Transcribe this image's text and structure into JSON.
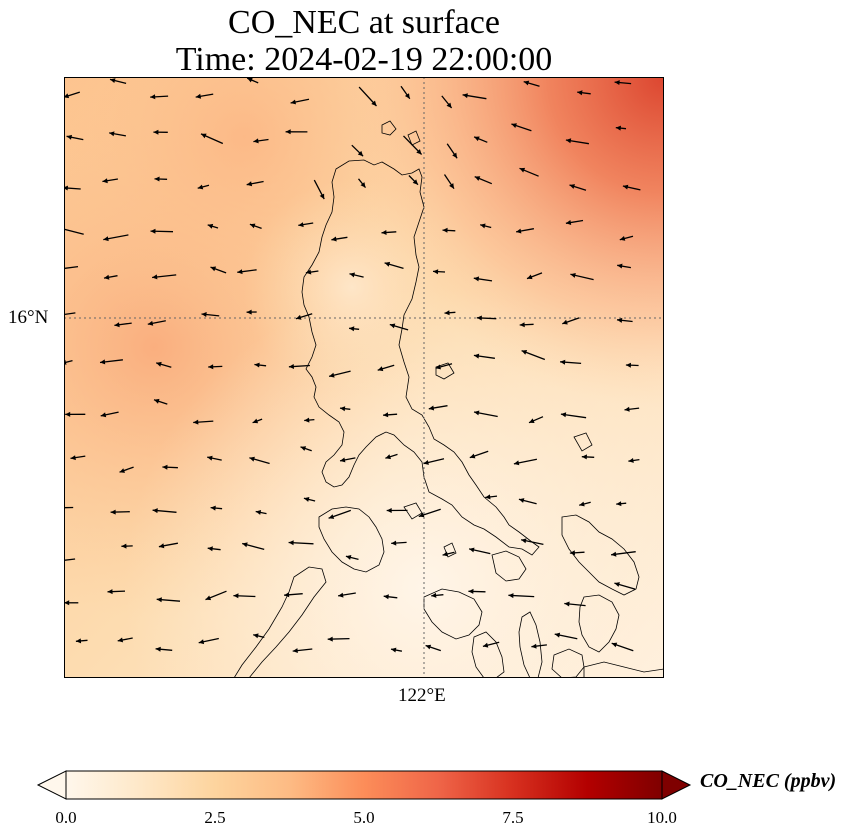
{
  "title": {
    "line1": "CO_NEC at surface",
    "line2": "Time: 2024-02-19 22:00:00"
  },
  "map": {
    "lat_label": "16°N",
    "lon_label": "122°E",
    "gridline_style": "dotted",
    "coastline_color": "#000000"
  },
  "colorbar": {
    "label": "CO_NEC (ppbv)",
    "min": 0.0,
    "max": 10.0,
    "extend": "both",
    "colormap": "OrRd",
    "ticks": [
      "0.0",
      "2.5",
      "5.0",
      "7.5",
      "10.0"
    ]
  },
  "colors": {
    "low": "#fff7ec",
    "mid": "#fdbb84",
    "high": "#d7301f",
    "max": "#7f0000"
  }
}
